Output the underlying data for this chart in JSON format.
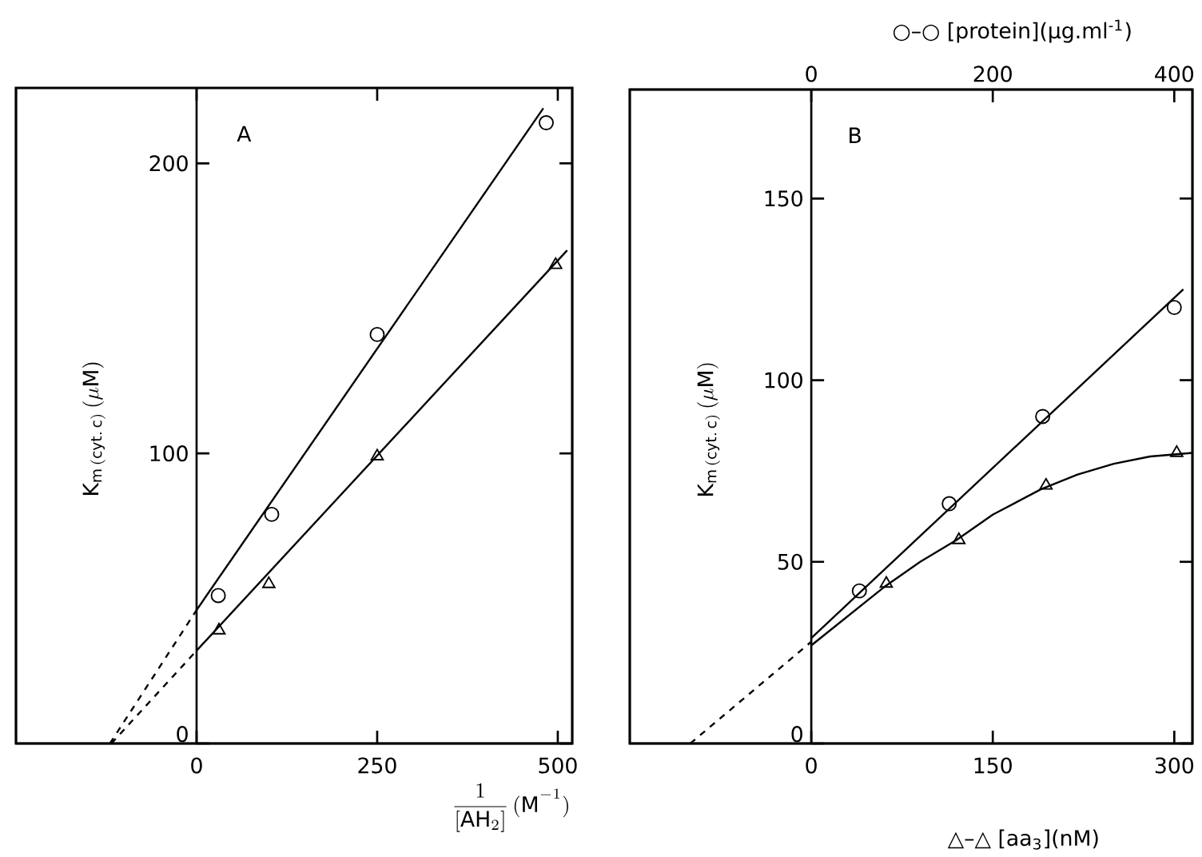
{
  "chart_data": [
    {
      "type": "scatter",
      "xlabel": "\\frac{1}{[\\mathrm{AH}_2]}\\,(\\mathrm{M}^{-1})",
      "ylabel": "\\mathrm{K}_{\\mathrm{m\\,(cyt.\\,c)}}\\,(\\mu\\mathrm{M})",
      "xlim": [
        -250,
        520
      ],
      "ylim": [
        0,
        226
      ],
      "xticks": [
        0,
        250,
        500
      ],
      "yticks": [
        0,
        100,
        200
      ],
      "annotations": [
        "A"
      ],
      "series": [
        {
          "marker": "circle",
          "color": "#000000",
          "x": [
            30,
            104,
            250,
            484
          ],
          "values": [
            51,
            79,
            141,
            214
          ]
        },
        {
          "marker": "triangle",
          "color": "#000000",
          "x": [
            31,
            100,
            250,
            497
          ],
          "values": [
            39,
            55,
            99,
            165
          ]
        },
        {
          "type": "line",
          "color": "#000000",
          "line_style": "solid",
          "x": [
            0,
            480
          ],
          "values": [
            46,
            219
          ]
        },
        {
          "type": "line",
          "color": "#000000",
          "line_style": "solid",
          "x": [
            0,
            513
          ],
          "values": [
            32,
            170
          ]
        },
        {
          "type": "line",
          "color": "#000000",
          "line_style": "dashed",
          "x": [
            -120,
            0
          ],
          "values": [
            0,
            46
          ]
        },
        {
          "type": "line",
          "color": "#000000",
          "line_style": "dashed",
          "x": [
            -118,
            0
          ],
          "values": [
            0,
            32
          ]
        }
      ]
    },
    {
      "type": "scatter",
      "xlabel": "△–△ [aa$_{3}$](nM)",
      "x2label": "○–○ [protein](μg.ml$^{-1}$)",
      "ylabel": "\\mathrm{K}_{\\mathrm{m\\,(cyt.\\,c)}}\\,(\\mu\\mathrm{M})",
      "xlim": [
        -150,
        315
      ],
      "x2lim": [
        -200,
        420
      ],
      "ylim": [
        0,
        180
      ],
      "xticks": [
        0,
        150,
        300
      ],
      "x2ticks": [
        0,
        200,
        400
      ],
      "yticks": [
        0,
        50,
        100,
        150
      ],
      "annotations": [
        "B"
      ],
      "series": [
        {
          "marker": "circle",
          "axis": "x2",
          "color": "#000000",
          "x": [
            53,
            152,
            255,
            400
          ],
          "values": [
            42,
            66,
            90,
            120
          ]
        },
        {
          "marker": "triangle",
          "color": "#000000",
          "x": [
            62,
            122,
            194,
            302
          ],
          "values": [
            44,
            56,
            71,
            80
          ]
        },
        {
          "type": "line",
          "axis": "x2",
          "color": "#000000",
          "line_style": "solid",
          "x": [
            0,
            410
          ],
          "values": [
            29,
            125
          ]
        },
        {
          "type": "line",
          "color": "#000000",
          "line_style": "solid",
          "x": [
            0,
            30,
            60,
            90,
            120,
            150,
            190,
            220,
            250,
            280,
            315
          ],
          "values": [
            27,
            35,
            43,
            50,
            56,
            63,
            70,
            74,
            77,
            79,
            80
          ]
        },
        {
          "type": "line",
          "color": "#000000",
          "line_style": "dashed",
          "x": [
            -100,
            0
          ],
          "values": [
            0,
            28
          ]
        }
      ]
    }
  ]
}
